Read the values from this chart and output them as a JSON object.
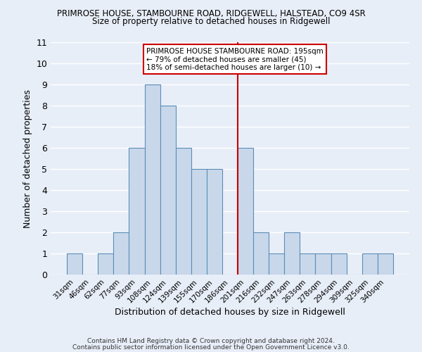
{
  "title": "PRIMROSE HOUSE, STAMBOURNE ROAD, RIDGEWELL, HALSTEAD, CO9 4SR",
  "subtitle": "Size of property relative to detached houses in Ridgewell",
  "xlabel": "Distribution of detached houses by size in Ridgewell",
  "ylabel": "Number of detached properties",
  "categories": [
    "31sqm",
    "46sqm",
    "62sqm",
    "77sqm",
    "93sqm",
    "108sqm",
    "124sqm",
    "139sqm",
    "155sqm",
    "170sqm",
    "186sqm",
    "201sqm",
    "216sqm",
    "232sqm",
    "247sqm",
    "263sqm",
    "278sqm",
    "294sqm",
    "309sqm",
    "325sqm",
    "340sqm"
  ],
  "values": [
    1,
    0,
    1,
    2,
    6,
    9,
    8,
    6,
    5,
    5,
    0,
    6,
    2,
    1,
    2,
    1,
    1,
    1,
    0,
    1,
    1
  ],
  "bar_color": "#c8d8ea",
  "bar_edge_color": "#5b8db8",
  "bg_color": "#e8eef8",
  "grid_color": "#ffffff",
  "vline_x_index": 10.5,
  "vline_color": "#cc0000",
  "annotation_text_line1": "PRIMROSE HOUSE STAMBOURNE ROAD: 195sqm",
  "annotation_text_line2": "← 79% of detached houses are smaller (45)",
  "annotation_text_line3": "18% of semi-detached houses are larger (10) →",
  "footer_line1": "Contains HM Land Registry data © Crown copyright and database right 2024.",
  "footer_line2": "Contains public sector information licensed under the Open Government Licence v3.0.",
  "ylim": [
    0,
    11
  ],
  "yticks": [
    0,
    1,
    2,
    3,
    4,
    5,
    6,
    7,
    8,
    9,
    10,
    11
  ]
}
